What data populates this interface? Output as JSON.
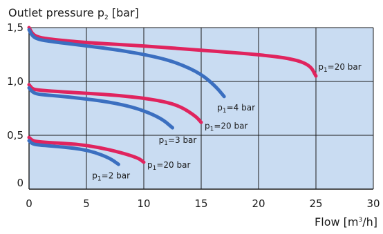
{
  "chart_data": {
    "type": "line",
    "title": "",
    "ylabel": {
      "main": "Outlet pressure p",
      "sub": "2",
      "unit": " [bar]"
    },
    "xlabel": {
      "main": "Flow [m",
      "sup": "3",
      "unit": "/h]"
    },
    "xlim": [
      0,
      30
    ],
    "ylim": [
      0,
      1.5
    ],
    "x_ticks": [
      "0",
      "5",
      "10",
      "15",
      "20",
      "25",
      "30"
    ],
    "y_ticks": [
      "1,5",
      "1,0",
      "0,5",
      "0"
    ],
    "grid": true,
    "colors": {
      "plot_bg": "#c9dcf2",
      "grid": "#1a1a1a",
      "pink": "#e0245e",
      "blue": "#3b6fc0"
    },
    "series": [
      {
        "color": "pink",
        "x": [
          0,
          0.3,
          0.8,
          2,
          5,
          10,
          15,
          20,
          23,
          24.5,
          25
        ],
        "y": [
          1.5,
          1.44,
          1.41,
          1.39,
          1.36,
          1.33,
          1.29,
          1.25,
          1.21,
          1.15,
          1.05
        ]
      },
      {
        "color": "blue",
        "x": [
          0,
          0.3,
          0.8,
          2,
          5,
          8,
          11,
          13,
          15,
          16.3,
          17
        ],
        "y": [
          1.48,
          1.42,
          1.39,
          1.37,
          1.33,
          1.29,
          1.23,
          1.17,
          1.07,
          0.95,
          0.86
        ]
      },
      {
        "color": "pink",
        "x": [
          0,
          0.3,
          0.8,
          2,
          5,
          8,
          11,
          13,
          14.5,
          15
        ],
        "y": [
          0.97,
          0.93,
          0.92,
          0.91,
          0.89,
          0.87,
          0.83,
          0.78,
          0.68,
          0.62
        ]
      },
      {
        "color": "blue",
        "x": [
          0,
          0.3,
          0.8,
          2,
          4,
          7,
          9.5,
          11.5,
          12.5
        ],
        "y": [
          0.94,
          0.9,
          0.88,
          0.87,
          0.85,
          0.81,
          0.75,
          0.66,
          0.57
        ]
      },
      {
        "color": "pink",
        "x": [
          0,
          0.3,
          0.8,
          2,
          4,
          6,
          8,
          9.5,
          10
        ],
        "y": [
          0.48,
          0.45,
          0.44,
          0.43,
          0.42,
          0.39,
          0.34,
          0.29,
          0.25
        ]
      },
      {
        "color": "blue",
        "x": [
          0,
          0.3,
          0.8,
          2,
          4,
          5.5,
          7,
          7.8
        ],
        "y": [
          0.45,
          0.42,
          0.41,
          0.4,
          0.38,
          0.35,
          0.29,
          0.23
        ]
      }
    ],
    "annotations": [
      {
        "pre": "p",
        "sub": "1",
        "text": "=20 bar",
        "x": 25.2,
        "y": 1.11
      },
      {
        "pre": "p",
        "sub": "1",
        "text": "=4 bar",
        "x": 16.4,
        "y": 0.73
      },
      {
        "pre": "p",
        "sub": "1",
        "text": "=20 bar",
        "x": 15.3,
        "y": 0.56
      },
      {
        "pre": "p",
        "sub": "1",
        "text": "=3 bar",
        "x": 11.3,
        "y": 0.43
      },
      {
        "pre": "p",
        "sub": "1",
        "text": "=20 bar",
        "x": 10.3,
        "y": 0.2
      },
      {
        "pre": "p",
        "sub": "1",
        "text": "=2 bar",
        "x": 5.5,
        "y": 0.1
      }
    ]
  }
}
